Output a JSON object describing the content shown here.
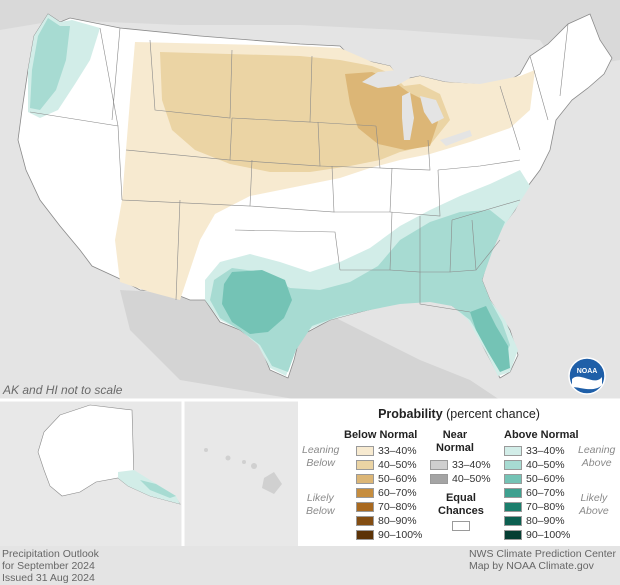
{
  "map": {
    "scale_note": "AK and HI not to scale",
    "logo_text": "NOAA"
  },
  "legend": {
    "title_bold": "Probability",
    "title_rest": " (percent chance)",
    "below_normal": {
      "heading": "Below Normal",
      "side_label_1": [
        "Leaning",
        "Below"
      ],
      "side_label_2": [
        "Likely",
        "Below"
      ],
      "items": [
        {
          "label": "33–40%",
          "color": "#f7ead0"
        },
        {
          "label": "40–50%",
          "color": "#ebd4a4"
        },
        {
          "label": "50–60%",
          "color": "#dcb676"
        },
        {
          "label": "60–70%",
          "color": "#c68d3e"
        },
        {
          "label": "70–80%",
          "color": "#a9691f"
        },
        {
          "label": "80–90%",
          "color": "#834d12"
        },
        {
          "label": "90–100%",
          "color": "#5c3307"
        }
      ]
    },
    "near_normal": {
      "heading": [
        "Near",
        "Normal"
      ],
      "items": [
        {
          "label": "33–40%",
          "color": "#cfcfcf"
        },
        {
          "label": "40–50%",
          "color": "#a4a4a4"
        }
      ]
    },
    "equal_chances": {
      "heading": [
        "Equal",
        "Chances"
      ],
      "color": "#ffffff"
    },
    "above_normal": {
      "heading": "Above Normal",
      "side_label_1": [
        "Leaning",
        "Above"
      ],
      "side_label_2": [
        "Likely",
        "Above"
      ],
      "items": [
        {
          "label": "33–40%",
          "color": "#d2ede8"
        },
        {
          "label": "40–50%",
          "color": "#a7dbd2"
        },
        {
          "label": "50–60%",
          "color": "#74c3b5"
        },
        {
          "label": "60–70%",
          "color": "#3ea08f"
        },
        {
          "label": "70–80%",
          "color": "#1b7e6c"
        },
        {
          "label": "80–90%",
          "color": "#0c5f50"
        },
        {
          "label": "90–100%",
          "color": "#043e33"
        }
      ]
    }
  },
  "footer": {
    "left_1": "Precipitation Outlook",
    "left_2": "for September 2024",
    "left_3": "Issued 31 Aug 2024",
    "right_1": "NWS Climate Prediction Center",
    "right_2": "Map by NOAA Climate.gov"
  }
}
